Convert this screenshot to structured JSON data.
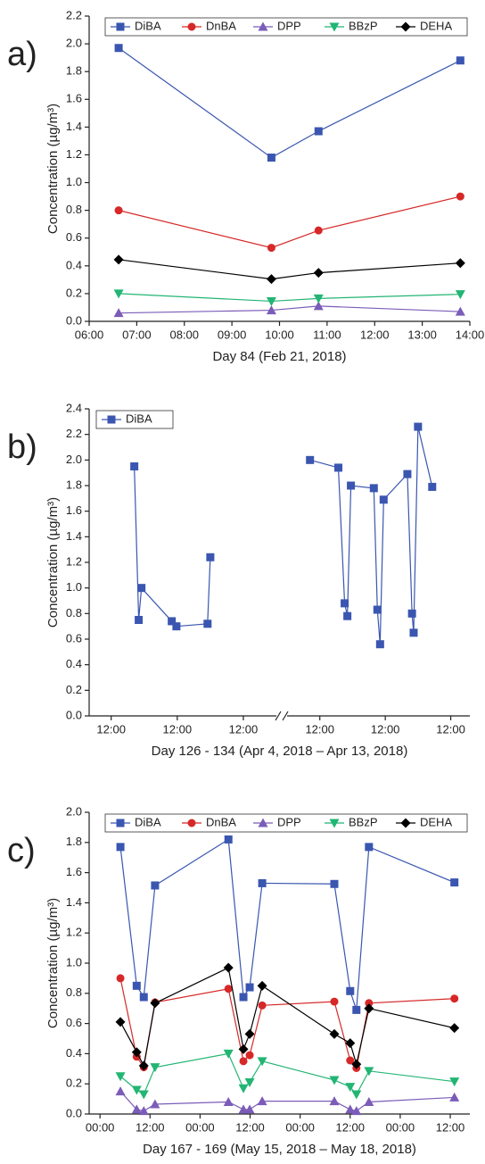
{
  "chart_data": [
    {
      "type": "line",
      "panel_label": "a)",
      "x_label": "Day 84 (Feb 21, 2018)",
      "y_label": "Concentration (µg/m³)",
      "x_segments": [
        {
          "xlim": [
            6,
            14
          ],
          "xticks": [
            {
              "value": 6,
              "label": "06:00"
            },
            {
              "value": 7,
              "label": "07:00"
            },
            {
              "value": 8,
              "label": "08:00"
            },
            {
              "value": 9,
              "label": "09:00"
            },
            {
              "value": 10,
              "label": "10:00"
            },
            {
              "value": 11,
              "label": "11:00"
            },
            {
              "value": 12,
              "label": "12:00"
            },
            {
              "value": 13,
              "label": "13:00"
            },
            {
              "value": 14,
              "label": "14:00"
            }
          ]
        }
      ],
      "ylim": [
        0,
        2.2
      ],
      "yticks": [
        {
          "value": 0,
          "label": "0.0"
        },
        {
          "value": 0.2,
          "label": "0.2"
        },
        {
          "value": 0.4,
          "label": "0.4"
        },
        {
          "value": 0.6,
          "label": "0.6"
        },
        {
          "value": 0.8,
          "label": "0.8"
        },
        {
          "value": 1,
          "label": "1.0"
        },
        {
          "value": 1.2,
          "label": "1.2"
        },
        {
          "value": 1.4,
          "label": "1.4"
        },
        {
          "value": 1.6,
          "label": "1.6"
        },
        {
          "value": 1.8,
          "label": "1.8"
        },
        {
          "value": 2,
          "label": "2.0"
        },
        {
          "value": 2.2,
          "label": "2.2"
        }
      ],
      "x": [
        6.62,
        9.83,
        10.82,
        13.8
      ],
      "legend": "top",
      "series": [
        {
          "name": "DiBA",
          "color": "#3a56b0",
          "marker": "square",
          "values": [
            1.97,
            1.18,
            1.37,
            1.88
          ]
        },
        {
          "name": "DnBA",
          "color": "#d62828",
          "marker": "circle",
          "values": [
            0.8,
            0.53,
            0.655,
            0.9
          ]
        },
        {
          "name": "DPP",
          "color": "#7b5cb8",
          "marker": "triangle-up",
          "values": [
            0.06,
            0.08,
            0.11,
            0.07
          ]
        },
        {
          "name": "BBzP",
          "color": "#22b573",
          "marker": "triangle-down",
          "values": [
            0.2,
            0.145,
            0.165,
            0.195
          ]
        },
        {
          "name": "DEHA",
          "color": "#000000",
          "marker": "diamond",
          "values": [
            0.445,
            0.305,
            0.35,
            0.42
          ]
        }
      ]
    },
    {
      "type": "line",
      "panel_label": "b)",
      "x_label": "Day 126 - 134 (Apr 4, 2018 – Apr 13, 2018)",
      "y_label": "Concentration (µg/m³)",
      "x_segments": [
        {
          "xlim": [
            4,
            72
          ],
          "xticks": [
            {
              "value": 12,
              "label": "12:00"
            },
            {
              "value": 36,
              "label": "12:00"
            },
            {
              "value": 60,
              "label": "12:00"
            }
          ]
        },
        {
          "xlim": [
            168,
            235
          ],
          "xticks": [
            {
              "value": 180,
              "label": "12:00"
            },
            {
              "value": 204,
              "label": "12:00"
            },
            {
              "value": 228,
              "label": "12:00"
            }
          ]
        }
      ],
      "ylim": [
        0,
        2.4
      ],
      "yticks": [
        {
          "value": 0,
          "label": "0.0"
        },
        {
          "value": 0.2,
          "label": "0.2"
        },
        {
          "value": 0.4,
          "label": "0.4"
        },
        {
          "value": 0.6,
          "label": "0.6"
        },
        {
          "value": 0.8,
          "label": "0.8"
        },
        {
          "value": 1,
          "label": "1.0"
        },
        {
          "value": 1.2,
          "label": "1.2"
        },
        {
          "value": 1.4,
          "label": "1.4"
        },
        {
          "value": 1.6,
          "label": "1.6"
        },
        {
          "value": 1.8,
          "label": "1.8"
        },
        {
          "value": 2,
          "label": "2.0"
        },
        {
          "value": 2.2,
          "label": "2.2"
        },
        {
          "value": 2.4,
          "label": "2.4"
        }
      ],
      "x": [
        20.4,
        22,
        23,
        34,
        35.7,
        47,
        48,
        null,
        176.4,
        186.8,
        189.1,
        190.1,
        191.4,
        199.8,
        201.1,
        202.1,
        203.4,
        212.1,
        213.8,
        214.4,
        216,
        221.2
      ],
      "legend": "top-left",
      "series": [
        {
          "name": "DiBA",
          "color": "#3a56b0",
          "marker": "square",
          "values": [
            1.95,
            0.75,
            1.0,
            0.74,
            0.7,
            0.72,
            1.24,
            null,
            2.0,
            1.94,
            0.88,
            0.78,
            1.8,
            1.78,
            0.83,
            0.56,
            1.69,
            1.89,
            0.8,
            0.65,
            2.26,
            1.79
          ]
        }
      ]
    },
    {
      "type": "line",
      "panel_label": "c)",
      "x_label": "Day 167 - 169 (May 15, 2018 – May 18, 2018)",
      "y_label": "Concentration (µg/m³)",
      "x_segments": [
        {
          "xlim": [
            -2.6,
            88.7
          ],
          "xticks": [
            {
              "value": 0,
              "label": "00:00"
            },
            {
              "value": 12,
              "label": "12:00"
            },
            {
              "value": 24,
              "label": "00:00"
            },
            {
              "value": 36,
              "label": "12:00"
            },
            {
              "value": 48,
              "label": "00:00"
            },
            {
              "value": 60,
              "label": "12:00"
            },
            {
              "value": 72,
              "label": "00:00"
            },
            {
              "value": 84,
              "label": "12:00"
            }
          ]
        }
      ],
      "ylim": [
        0,
        2.0
      ],
      "yticks": [
        {
          "value": 0,
          "label": "0.0"
        },
        {
          "value": 0.2,
          "label": "0.2"
        },
        {
          "value": 0.4,
          "label": "0.4"
        },
        {
          "value": 0.6,
          "label": "0.6"
        },
        {
          "value": 0.8,
          "label": "0.8"
        },
        {
          "value": 1,
          "label": "1.0"
        },
        {
          "value": 1.2,
          "label": "1.2"
        },
        {
          "value": 1.4,
          "label": "1.4"
        },
        {
          "value": 1.6,
          "label": "1.6"
        },
        {
          "value": 1.8,
          "label": "1.8"
        },
        {
          "value": 2,
          "label": "2.0"
        }
      ],
      "x": [
        4.9,
        8.8,
        10.5,
        13.2,
        30.8,
        34.4,
        35.9,
        38.9,
        56.2,
        60.0,
        61.5,
        64.5,
        85.0
      ],
      "legend": "top",
      "series": [
        {
          "name": "DiBA",
          "color": "#3a56b0",
          "marker": "square",
          "values": [
            1.77,
            0.85,
            0.775,
            1.515,
            1.82,
            0.775,
            0.84,
            1.53,
            1.525,
            0.815,
            0.69,
            1.77,
            1.535
          ]
        },
        {
          "name": "DnBA",
          "color": "#d62828",
          "marker": "circle",
          "values": [
            0.9,
            0.38,
            0.31,
            0.74,
            0.83,
            0.35,
            0.39,
            0.72,
            0.745,
            0.355,
            0.305,
            0.735,
            0.765
          ]
        },
        {
          "name": "DPP",
          "color": "#7b5cb8",
          "marker": "triangle-up",
          "values": [
            0.15,
            0.03,
            0.02,
            0.065,
            0.08,
            0.03,
            0.03,
            0.085,
            0.085,
            0.03,
            0.02,
            0.08,
            0.11
          ]
        },
        {
          "name": "BBzP",
          "color": "#22b573",
          "marker": "triangle-down",
          "values": [
            0.25,
            0.16,
            0.13,
            0.31,
            0.4,
            0.17,
            0.21,
            0.35,
            0.225,
            0.18,
            0.13,
            0.285,
            0.215
          ]
        },
        {
          "name": "DEHA",
          "color": "#000000",
          "marker": "diamond",
          "values": [
            0.61,
            0.41,
            0.32,
            0.735,
            0.97,
            0.43,
            0.53,
            0.85,
            0.53,
            0.47,
            0.33,
            0.7,
            0.57
          ]
        }
      ]
    }
  ]
}
